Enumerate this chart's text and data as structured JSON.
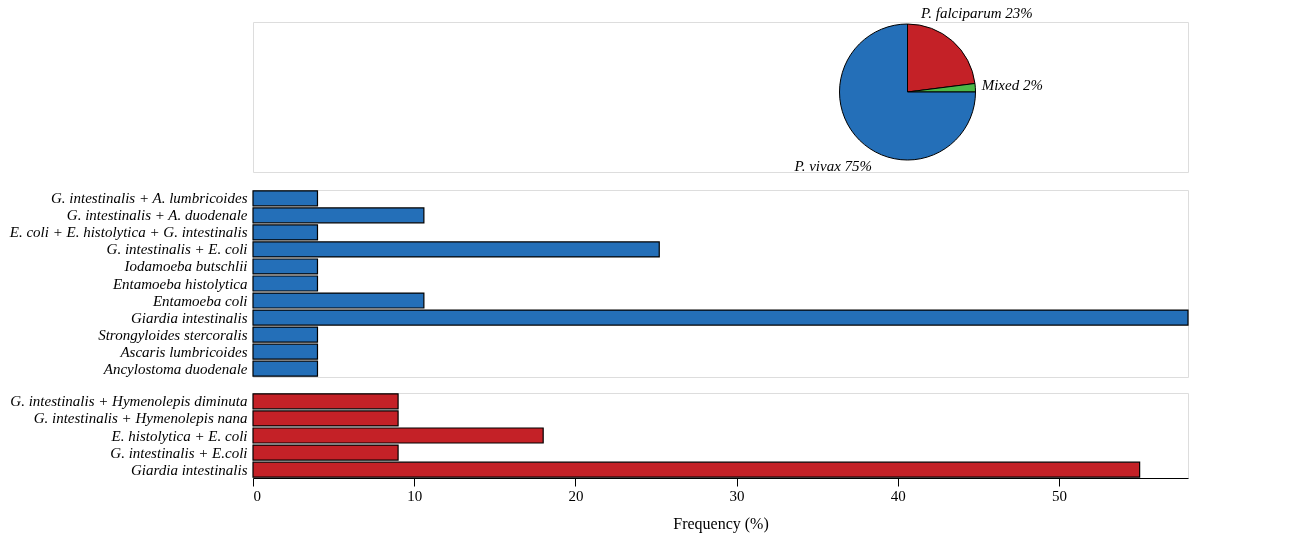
{
  "chart_data": [
    {
      "type": "pie",
      "categories": [
        "P. falciparum",
        "Mixed",
        "P. vivax"
      ],
      "values": [
        23,
        2,
        75
      ],
      "colors": [
        "#c42127",
        "#4cb848",
        "#246fb8"
      ],
      "value_labels": [
        "23%",
        "2%",
        "75%"
      ],
      "legend": false
    },
    {
      "type": "bar",
      "orientation": "horizontal",
      "categories": [
        "G. intestinalis  + A. lumbricoides",
        "G. intestinalis  + A. duodenale",
        "E. coli + E. histolytica + G. intestinalis",
        "G. intestinalis + E. coli",
        "Iodamoeba butschlii",
        "Entamoeba histolytica",
        "Entamoeba coli",
        "Giardia intestinalis",
        "Strongyloides stercoralis",
        "Ascaris lumbricoides",
        "Ancylostoma duodenale"
      ],
      "values": [
        4,
        10.6,
        4,
        25.2,
        4,
        4,
        10.6,
        58,
        4,
        4,
        4
      ],
      "color": "#246fb8",
      "xlim": [
        0,
        58
      ],
      "xticks": [
        0,
        10,
        20,
        30,
        40,
        50
      ],
      "tick_labels": "y",
      "grid": false
    },
    {
      "type": "bar",
      "orientation": "horizontal",
      "categories": [
        "G. intestinalis  + Hymenolepis diminuta",
        "G. intestinalis  + Hymenolepis nana",
        "E. histolytica + E. coli",
        "G. intestinalis  + E.coli",
        "Giardia intestinalis"
      ],
      "values": [
        9,
        9,
        18,
        9,
        55
      ],
      "color": "#c42127",
      "xlim": [
        0,
        58
      ],
      "xticks": [
        0,
        10,
        20,
        30,
        40,
        50
      ],
      "xlabel": "Frequency (%)",
      "grid": false
    }
  ]
}
